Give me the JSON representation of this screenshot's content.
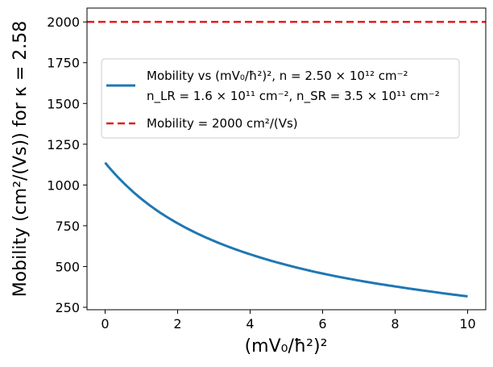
{
  "chart_data": {
    "type": "line",
    "title": "",
    "xlabel": "(mV₀/ħ²)²",
    "ylabel": "Mobility (cm²/(Vs)) for  κ = 2.58",
    "xlim": [
      -0.5,
      10.5
    ],
    "ylim": [
      235,
      2085
    ],
    "xticks": [
      "0",
      "2",
      "4",
      "6",
      "8",
      "10"
    ],
    "xtick_values": [
      0,
      2,
      4,
      6,
      8,
      10
    ],
    "yticks": [
      "250",
      "500",
      "750",
      "1000",
      "1250",
      "1500",
      "1750",
      "2000"
    ],
    "ytick_values": [
      250,
      500,
      750,
      1000,
      1250,
      1500,
      1750,
      2000
    ],
    "grid": false,
    "legend_position": "center-right",
    "series": [
      {
        "name": "Mobility vs (mV₀/ħ²)², n = 2.50 × 10¹² cm⁻²",
        "name_line2": "n_LR = 1.6 × 10¹¹ cm⁻²,  n_SR = 3.5 × 10¹¹ cm⁻²",
        "style": "solid",
        "color": "#1f77b4",
        "x": [
          0,
          0.5,
          1,
          1.5,
          2,
          3,
          4,
          5,
          6,
          7,
          8,
          9,
          10
        ],
        "y": [
          1137,
          1015,
          915,
          833,
          765,
          657,
          575,
          510,
          457,
          414,
          378,
          346,
          317
        ]
      },
      {
        "name": "Mobility = 2000 cm²/(Vs)",
        "style": "dashed",
        "color": "#e41a1c",
        "x": [
          -0.5,
          10.5
        ],
        "y": [
          2000,
          2000
        ]
      }
    ]
  }
}
